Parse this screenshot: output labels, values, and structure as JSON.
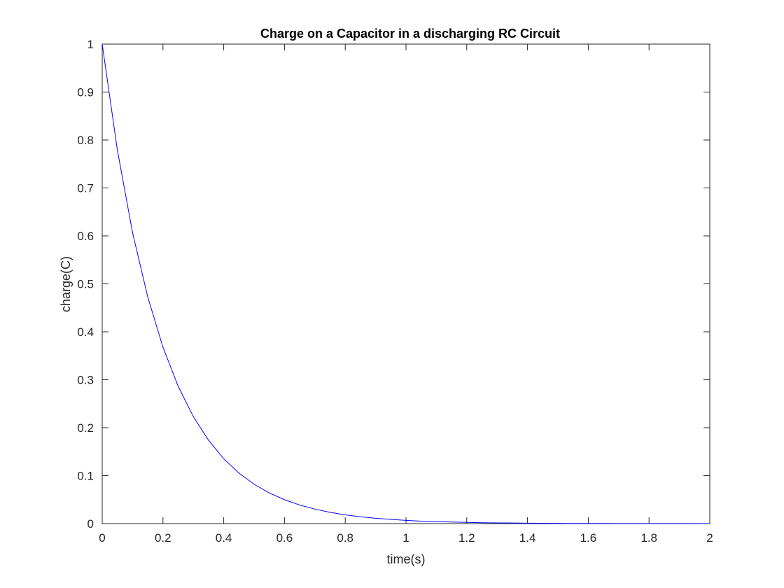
{
  "chart_data": {
    "type": "line",
    "title": "Charge on a Capacitor in a discharging RC Circuit",
    "xlabel": "time(s)",
    "ylabel": "charge(C)",
    "xlim": [
      0,
      2
    ],
    "ylim": [
      0,
      1
    ],
    "xticks": [
      0,
      0.2,
      0.4,
      0.6,
      0.8,
      1,
      1.2,
      1.4,
      1.6,
      1.8,
      2
    ],
    "yticks": [
      0,
      0.1,
      0.2,
      0.3,
      0.4,
      0.5,
      0.6,
      0.7,
      0.8,
      0.9,
      1
    ],
    "xtick_labels": [
      "0",
      "0.2",
      "0.4",
      "0.6",
      "0.8",
      "1",
      "1.2",
      "1.4",
      "1.6",
      "1.8",
      "2"
    ],
    "ytick_labels": [
      "0",
      "0.1",
      "0.2",
      "0.3",
      "0.4",
      "0.5",
      "0.6",
      "0.7",
      "0.8",
      "0.9",
      "1"
    ],
    "grid": false,
    "series": [
      {
        "color": "#0000ff",
        "x": [
          0,
          0.05,
          0.1,
          0.15,
          0.2,
          0.25,
          0.3,
          0.35,
          0.4,
          0.45,
          0.5,
          0.55,
          0.6,
          0.65,
          0.7,
          0.75,
          0.8,
          0.85,
          0.9,
          0.95,
          1.0,
          1.05,
          1.1,
          1.15,
          1.2,
          1.25,
          1.3,
          1.35,
          1.4,
          1.45,
          1.5,
          1.55,
          1.6,
          1.65,
          1.7,
          1.75,
          1.8,
          1.85,
          1.9,
          1.95,
          2.0
        ],
        "y": [
          1.0,
          0.7788,
          0.6065,
          0.4724,
          0.3679,
          0.2865,
          0.2231,
          0.1738,
          0.1353,
          0.1054,
          0.0821,
          0.0639,
          0.0498,
          0.0388,
          0.0302,
          0.0235,
          0.0183,
          0.0143,
          0.0111,
          0.0087,
          0.0067,
          0.0052,
          0.0041,
          0.0032,
          0.0025,
          0.0019,
          0.0015,
          0.0012,
          0.0009,
          0.0007,
          0.0006,
          0.0004,
          0.0003,
          0.0003,
          0.0002,
          0.0002,
          0.0001,
          0.0001,
          0.0001,
          0.0001,
          0.0
        ]
      }
    ]
  }
}
